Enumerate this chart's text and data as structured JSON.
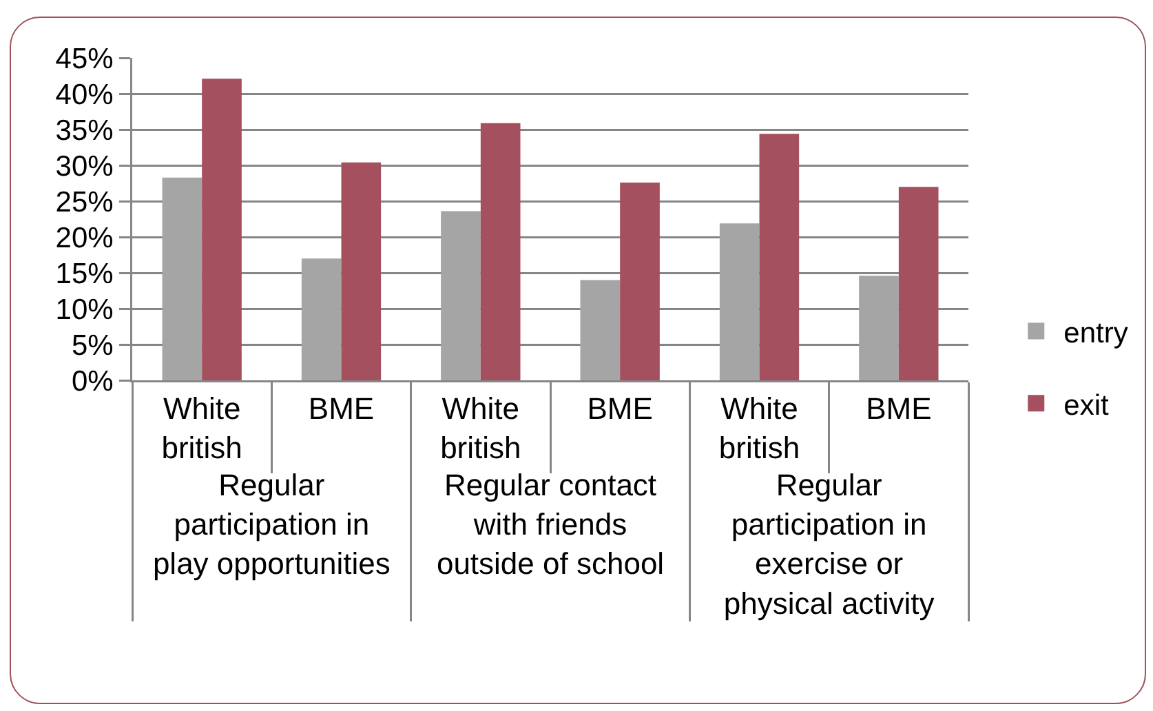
{
  "chart_data": {
    "type": "bar",
    "categories": [
      "White british",
      "BME",
      "White british",
      "BME",
      "White british",
      "BME"
    ],
    "annotations": [
      "Regular participation in play opportunities",
      "Regular contact with friends outside of school",
      "Regular participation in exercise or physical activity"
    ],
    "series": [
      {
        "name": "entry",
        "color": "#a5a5a5",
        "values": [
          28.3,
          17.0,
          23.6,
          14.0,
          21.9,
          14.6
        ]
      },
      {
        "name": "exit",
        "color": "#a4505e",
        "values": [
          42.1,
          30.4,
          35.9,
          27.6,
          34.4,
          27.0
        ]
      }
    ],
    "ylim": [
      0,
      45
    ],
    "yticks": [
      {
        "value": 0,
        "label": "0%"
      },
      {
        "value": 5,
        "label": "5%"
      },
      {
        "value": 10,
        "label": "10%"
      },
      {
        "value": 15,
        "label": "15%"
      },
      {
        "value": 20,
        "label": "20%"
      },
      {
        "value": 25,
        "label": "25%"
      },
      {
        "value": 30,
        "label": "30%"
      },
      {
        "value": 35,
        "label": "35%"
      },
      {
        "value": 40,
        "label": "40%"
      },
      {
        "value": 45,
        "label": "45%"
      }
    ],
    "grid": "y",
    "legend": "right"
  }
}
